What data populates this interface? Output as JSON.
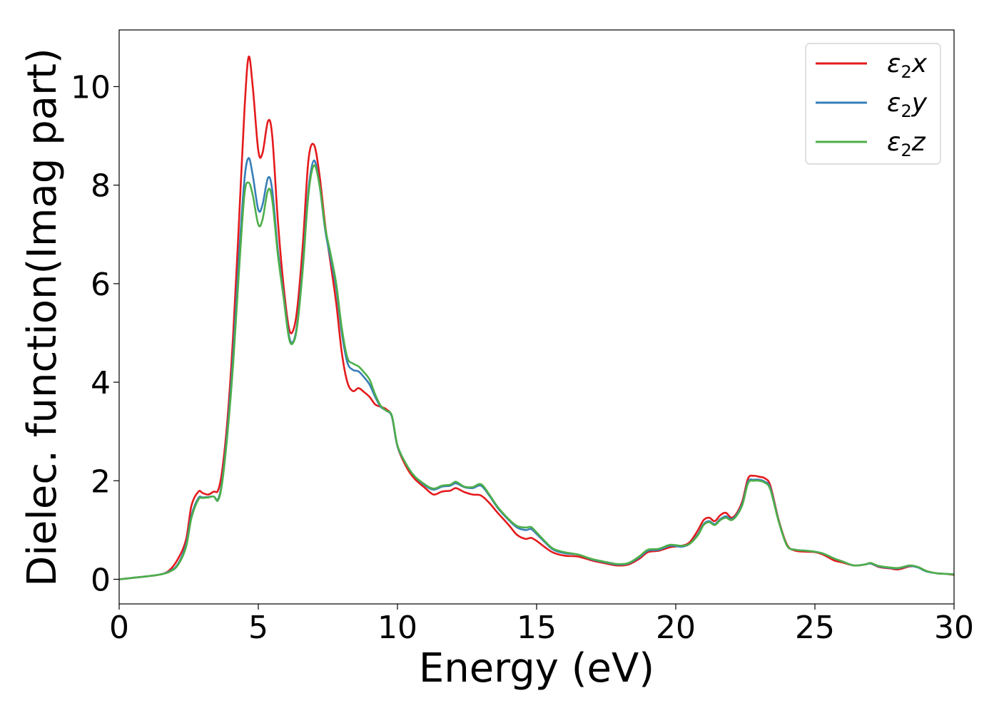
{
  "chart_data": {
    "type": "line",
    "title": "",
    "xlabel": "Energy (eV)",
    "ylabel": "Dielec. function(Imag part)",
    "xlim": [
      0,
      30
    ],
    "ylim": [
      -0.5,
      11.15
    ],
    "xticks": [
      0,
      5,
      10,
      15,
      20,
      25,
      30
    ],
    "yticks": [
      0,
      2,
      4,
      6,
      8,
      10
    ],
    "grid": false,
    "legend_position": "top-right",
    "series": [
      {
        "name": "ε₂x",
        "legend_main": "ε",
        "legend_sub": "2",
        "legend_axis": "x",
        "color": "#e41a1c",
        "x": [
          0,
          0.5,
          1,
          1.5,
          1.8,
          2.1,
          2.4,
          2.6,
          2.85,
          3.0,
          3.2,
          3.4,
          3.55,
          3.7,
          3.9,
          4.1,
          4.3,
          4.5,
          4.65,
          4.8,
          5.0,
          5.15,
          5.35,
          5.5,
          5.7,
          5.9,
          6.1,
          6.25,
          6.4,
          6.6,
          6.8,
          7.0,
          7.2,
          7.4,
          7.6,
          7.8,
          8.0,
          8.2,
          8.4,
          8.6,
          8.8,
          9.0,
          9.2,
          9.4,
          9.6,
          9.8,
          10.0,
          10.3,
          10.6,
          11.0,
          11.3,
          11.6,
          11.9,
          12.1,
          12.4,
          12.7,
          13.0,
          13.3,
          13.6,
          14.0,
          14.3,
          14.6,
          14.8,
          15.0,
          15.3,
          15.6,
          16.0,
          16.5,
          17.0,
          17.5,
          17.9,
          18.3,
          18.7,
          19.0,
          19.4,
          19.8,
          20.2,
          20.5,
          20.8,
          21.0,
          21.2,
          21.4,
          21.6,
          21.8,
          22.0,
          22.2,
          22.4,
          22.6,
          22.8,
          23.0,
          23.2,
          23.4,
          23.7,
          24.0,
          24.3,
          24.7,
          25.0,
          25.3,
          25.7,
          26.0,
          26.4,
          26.8,
          27.0,
          27.3,
          27.7,
          28.0,
          28.4,
          28.7,
          29.0,
          29.4,
          29.7,
          30.0
        ],
        "y": [
          0.0,
          0.03,
          0.06,
          0.1,
          0.18,
          0.4,
          0.8,
          1.5,
          1.78,
          1.75,
          1.72,
          1.78,
          1.8,
          2.2,
          3.3,
          5.0,
          7.2,
          9.5,
          10.6,
          10.0,
          8.7,
          8.65,
          9.3,
          9.0,
          7.3,
          6.0,
          5.1,
          5.05,
          5.5,
          6.8,
          8.5,
          8.82,
          8.2,
          7.2,
          6.4,
          5.6,
          4.6,
          4.0,
          3.82,
          3.88,
          3.8,
          3.7,
          3.55,
          3.5,
          3.45,
          3.3,
          2.7,
          2.3,
          2.05,
          1.85,
          1.72,
          1.78,
          1.8,
          1.85,
          1.77,
          1.72,
          1.7,
          1.55,
          1.35,
          1.1,
          0.9,
          0.82,
          0.84,
          0.78,
          0.65,
          0.54,
          0.48,
          0.46,
          0.38,
          0.32,
          0.28,
          0.3,
          0.42,
          0.55,
          0.58,
          0.65,
          0.68,
          0.75,
          1.0,
          1.2,
          1.25,
          1.18,
          1.3,
          1.35,
          1.25,
          1.35,
          1.6,
          2.05,
          2.1,
          2.08,
          2.05,
          1.9,
          1.2,
          0.7,
          0.58,
          0.56,
          0.55,
          0.5,
          0.38,
          0.34,
          0.28,
          0.3,
          0.32,
          0.25,
          0.22,
          0.2,
          0.26,
          0.25,
          0.17,
          0.12,
          0.11,
          0.09
        ]
      },
      {
        "name": "ε₂y",
        "legend_main": "ε",
        "legend_sub": "2",
        "legend_axis": "y",
        "color": "#377eb8",
        "x": [
          0,
          0.5,
          1,
          1.5,
          1.8,
          2.1,
          2.4,
          2.6,
          2.85,
          3.0,
          3.2,
          3.4,
          3.55,
          3.7,
          3.9,
          4.1,
          4.3,
          4.5,
          4.65,
          4.8,
          5.0,
          5.15,
          5.35,
          5.5,
          5.7,
          5.9,
          6.1,
          6.25,
          6.4,
          6.6,
          6.8,
          7.0,
          7.2,
          7.4,
          7.6,
          7.8,
          8.0,
          8.2,
          8.4,
          8.6,
          8.8,
          9.0,
          9.2,
          9.4,
          9.6,
          9.8,
          10.0,
          10.3,
          10.6,
          11.0,
          11.3,
          11.6,
          11.9,
          12.1,
          12.4,
          12.7,
          13.0,
          13.3,
          13.6,
          14.0,
          14.3,
          14.6,
          14.8,
          15.0,
          15.3,
          15.6,
          16.0,
          16.5,
          17.0,
          17.5,
          17.9,
          18.3,
          18.7,
          19.0,
          19.4,
          19.8,
          20.2,
          20.5,
          20.8,
          21.0,
          21.2,
          21.4,
          21.6,
          21.8,
          22.0,
          22.2,
          22.4,
          22.6,
          22.8,
          23.0,
          23.2,
          23.4,
          23.7,
          24.0,
          24.3,
          24.7,
          25.0,
          25.3,
          25.7,
          26.0,
          26.4,
          26.8,
          27.0,
          27.3,
          27.7,
          28.0,
          28.4,
          28.7,
          29.0,
          29.4,
          29.7,
          30.0
        ],
        "y": [
          0.0,
          0.03,
          0.06,
          0.1,
          0.16,
          0.3,
          0.7,
          1.3,
          1.65,
          1.66,
          1.67,
          1.68,
          1.62,
          2.0,
          3.1,
          4.6,
          6.5,
          8.1,
          8.55,
          8.2,
          7.5,
          7.6,
          8.15,
          7.9,
          6.7,
          5.8,
          4.95,
          4.82,
          5.2,
          6.4,
          7.9,
          8.5,
          8.0,
          7.1,
          6.5,
          5.9,
          5.0,
          4.4,
          4.25,
          4.22,
          4.1,
          3.95,
          3.7,
          3.5,
          3.42,
          3.3,
          2.7,
          2.35,
          2.1,
          1.9,
          1.82,
          1.88,
          1.9,
          1.95,
          1.87,
          1.85,
          1.9,
          1.7,
          1.45,
          1.2,
          1.05,
          1.0,
          1.02,
          0.92,
          0.75,
          0.6,
          0.53,
          0.5,
          0.4,
          0.34,
          0.3,
          0.32,
          0.45,
          0.58,
          0.6,
          0.68,
          0.66,
          0.72,
          0.92,
          1.12,
          1.18,
          1.12,
          1.22,
          1.28,
          1.22,
          1.32,
          1.55,
          1.98,
          2.02,
          2.02,
          1.98,
          1.85,
          1.18,
          0.68,
          0.6,
          0.58,
          0.56,
          0.52,
          0.42,
          0.36,
          0.28,
          0.3,
          0.32,
          0.26,
          0.23,
          0.22,
          0.27,
          0.24,
          0.16,
          0.12,
          0.11,
          0.1
        ]
      },
      {
        "name": "ε₂z",
        "legend_main": "ε",
        "legend_sub": "2",
        "legend_axis": "z",
        "color": "#4daf4a",
        "x": [
          0,
          0.5,
          1,
          1.5,
          1.8,
          2.1,
          2.4,
          2.6,
          2.85,
          3.0,
          3.2,
          3.4,
          3.55,
          3.7,
          3.9,
          4.1,
          4.3,
          4.5,
          4.65,
          4.8,
          5.0,
          5.15,
          5.35,
          5.5,
          5.7,
          5.9,
          6.1,
          6.25,
          6.4,
          6.6,
          6.8,
          7.0,
          7.2,
          7.4,
          7.6,
          7.8,
          8.0,
          8.2,
          8.4,
          8.6,
          8.8,
          9.0,
          9.2,
          9.4,
          9.6,
          9.8,
          10.0,
          10.3,
          10.6,
          11.0,
          11.3,
          11.6,
          11.9,
          12.1,
          12.4,
          12.7,
          13.0,
          13.3,
          13.6,
          14.0,
          14.3,
          14.6,
          14.8,
          15.0,
          15.3,
          15.6,
          16.0,
          16.5,
          17.0,
          17.5,
          17.9,
          18.3,
          18.7,
          19.0,
          19.4,
          19.8,
          20.2,
          20.5,
          20.8,
          21.0,
          21.2,
          21.4,
          21.6,
          21.8,
          22.0,
          22.2,
          22.4,
          22.6,
          22.8,
          23.0,
          23.2,
          23.4,
          23.7,
          24.0,
          24.3,
          24.7,
          25.0,
          25.3,
          25.7,
          26.0,
          26.4,
          26.8,
          27.0,
          27.3,
          27.7,
          28.0,
          28.4,
          28.7,
          29.0,
          29.4,
          29.7,
          30.0
        ],
        "y": [
          0.0,
          0.03,
          0.06,
          0.1,
          0.15,
          0.28,
          0.65,
          1.25,
          1.62,
          1.65,
          1.66,
          1.68,
          1.6,
          1.95,
          3.0,
          4.4,
          6.2,
          7.8,
          8.05,
          7.8,
          7.2,
          7.3,
          7.9,
          7.7,
          6.6,
          5.75,
          4.9,
          4.8,
          5.15,
          6.3,
          7.8,
          8.4,
          8.0,
          7.15,
          6.6,
          6.0,
          5.1,
          4.5,
          4.38,
          4.32,
          4.2,
          4.05,
          3.75,
          3.52,
          3.42,
          3.32,
          2.72,
          2.35,
          2.1,
          1.92,
          1.84,
          1.9,
          1.92,
          1.98,
          1.88,
          1.87,
          1.93,
          1.72,
          1.47,
          1.22,
          1.08,
          1.05,
          1.06,
          0.95,
          0.77,
          0.62,
          0.55,
          0.5,
          0.41,
          0.35,
          0.31,
          0.33,
          0.47,
          0.6,
          0.62,
          0.7,
          0.68,
          0.72,
          0.9,
          1.1,
          1.16,
          1.1,
          1.2,
          1.25,
          1.2,
          1.3,
          1.52,
          1.95,
          2.0,
          2.0,
          1.96,
          1.82,
          1.17,
          0.68,
          0.6,
          0.58,
          0.56,
          0.52,
          0.42,
          0.36,
          0.28,
          0.3,
          0.33,
          0.27,
          0.24,
          0.23,
          0.28,
          0.25,
          0.17,
          0.12,
          0.11,
          0.1
        ]
      }
    ]
  }
}
